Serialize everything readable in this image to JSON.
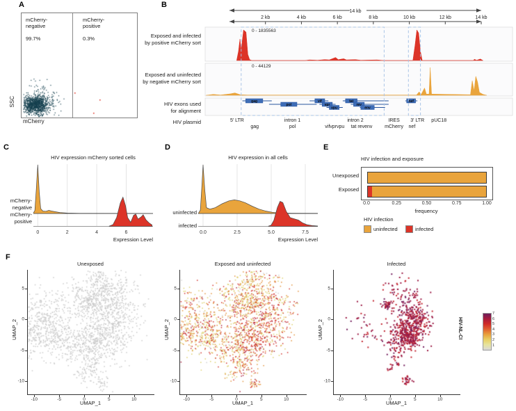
{
  "panels": {
    "a": "A",
    "b": "B",
    "c": "C",
    "d": "D",
    "e": "E",
    "f": "F"
  },
  "colors": {
    "red": "#dc3428",
    "orange": "#e9a43c",
    "dark_teal": "#16404f",
    "scatter_red": "#e0392b",
    "exon_blue": "#3e6db7",
    "exon_border": "#27549e",
    "dashed_blue": "#a9c4e6",
    "gray_points": "#c9c9c9",
    "baseline": "#999999",
    "axis": "#333333"
  },
  "chart_data": {
    "panel_a": {
      "type": "scatter",
      "xlabel": "mCherry",
      "ylabel": "SSC",
      "gates": [
        {
          "label": "mCherry-\nnegative",
          "percent": "99.7%"
        },
        {
          "label": "mCherry-\npositive",
          "percent": "0.3%"
        }
      ],
      "negative_cluster": {
        "center": [
          20,
          132
        ],
        "n_core": 700,
        "n_halo": 260
      },
      "positive_points": [
        [
          76,
          114
        ],
        [
          112,
          124
        ],
        [
          103,
          143
        ]
      ]
    },
    "panel_b": {
      "type": "coverage-tracks",
      "ruler": {
        "total_label": "14 kb",
        "tick_labels": [
          "2 kb",
          "4 kb",
          "6 kb",
          "8 kb",
          "10 kb",
          "12 kb",
          "14 kb"
        ],
        "tick_kb": [
          2,
          4,
          6,
          8,
          10,
          12,
          14
        ]
      },
      "tracks": [
        {
          "label": "Exposed and infected\nby positive mCherry sort",
          "range_label": "0 - 1835563",
          "color_key": "red",
          "profile": [
            [
              0.4,
              0
            ],
            [
              0.5,
              0.3
            ],
            [
              0.58,
              0.7
            ],
            [
              0.65,
              0.35
            ],
            [
              0.78,
              1.0
            ],
            [
              0.92,
              0.93
            ],
            [
              1.02,
              0.2
            ],
            [
              1.12,
              0.03
            ],
            [
              1.25,
              0
            ],
            [
              4.2,
              0
            ],
            [
              4.45,
              0.02
            ],
            [
              4.9,
              0.01
            ],
            [
              5.3,
              0.03
            ],
            [
              5.55,
              0.02
            ],
            [
              5.9,
              0.1
            ],
            [
              6.05,
              0.03
            ],
            [
              6.35,
              0.06
            ],
            [
              6.5,
              0.02
            ],
            [
              7.0,
              0.03
            ],
            [
              7.3,
              0.01
            ],
            [
              8.2,
              0.02
            ],
            [
              8.6,
              0
            ],
            [
              10.2,
              0
            ],
            [
              10.32,
              0.5
            ],
            [
              10.42,
              1.0
            ],
            [
              10.52,
              0.9
            ],
            [
              10.62,
              0.3
            ],
            [
              10.72,
              0
            ],
            [
              13.55,
              0
            ],
            [
              13.62,
              0.04
            ],
            [
              13.75,
              0.01
            ],
            [
              13.95,
              0.05
            ],
            [
              14.1,
              0
            ]
          ]
        },
        {
          "label": "Exposed and uninfected\nby negative mCherry sort",
          "range_label": "0 - 44129",
          "color_key": "orange",
          "profile": [
            [
              -1.3,
              0
            ],
            [
              -0.9,
              0.03
            ],
            [
              -0.5,
              0.01
            ],
            [
              0.05,
              0.05
            ],
            [
              0.3,
              0.08
            ],
            [
              0.6,
              0.02
            ],
            [
              1.0,
              0.01
            ],
            [
              10.4,
              0.01
            ],
            [
              10.55,
              0.12
            ],
            [
              10.65,
              0.02
            ],
            [
              10.85,
              0.25
            ],
            [
              10.95,
              0.04
            ],
            [
              11.1,
              0.04
            ],
            [
              11.16,
              0.95
            ],
            [
              11.24,
              0.04
            ],
            [
              13.4,
              0.02
            ],
            [
              13.5,
              0.5
            ],
            [
              13.6,
              0.15
            ],
            [
              13.7,
              0.65
            ],
            [
              13.8,
              0.45
            ],
            [
              13.9,
              0.1
            ],
            [
              14.1,
              0.03
            ],
            [
              14.3,
              0
            ]
          ]
        }
      ],
      "exons_track_label": "HIV exons used\nfor alignment",
      "exons": [
        {
          "name": "gag",
          "start": 0.9,
          "end": 1.85,
          "row": 0,
          "line": [
            0.72,
            2.35
          ]
        },
        {
          "name": "pol",
          "start": 2.85,
          "end": 3.75,
          "row": 1,
          "line": [
            2.2,
            4.85
          ]
        },
        {
          "name": "vif",
          "start": 4.75,
          "end": 5.3,
          "row": 0,
          "line": [
            4.45,
            5.5
          ]
        },
        {
          "name": "vpr",
          "start": 5.15,
          "end": 5.72,
          "row": 1,
          "line": [
            5.0,
            5.9
          ]
        },
        {
          "name": "vpu",
          "start": 5.55,
          "end": 6.1,
          "row": 2,
          "line": [
            5.4,
            6.3
          ]
        },
        {
          "name": "tat",
          "start": 6.45,
          "end": 7.1,
          "row": 0,
          "line": [
            6.3,
            8.85
          ]
        },
        {
          "name": "rev",
          "start": 6.9,
          "end": 7.5,
          "row": 1,
          "line": [
            6.75,
            8.85
          ]
        },
        {
          "name": "env",
          "start": 7.3,
          "end": 8.05,
          "row": 2,
          "line": [
            7.25,
            8.65
          ]
        },
        {
          "name": "nef",
          "start": 9.85,
          "end": 10.35,
          "row": 0,
          "line": [
            9.78,
            10.45
          ]
        }
      ],
      "highlight_regions_kb": [
        [
          0.65,
          8.6
        ],
        [
          9.95,
          10.62
        ]
      ],
      "plasmid_label": "HIV plasmid",
      "plasmid_annotations_row1": [
        {
          "text": "5' LTR",
          "kb": 0.42
        },
        {
          "text": "intron 1",
          "kb": 3.5
        },
        {
          "text": "intron 2",
          "kb": 7.0
        },
        {
          "text": "IRES",
          "kb": 9.15
        },
        {
          "text": "3' LTR",
          "kb": 10.45
        },
        {
          "text": "pUC18",
          "kb": 11.65
        }
      ],
      "plasmid_annotations_row2": [
        {
          "text": "gag",
          "kb": 1.4
        },
        {
          "text": "pol",
          "kb": 3.5
        },
        {
          "text": "vifvprvpu",
          "kb": 5.85
        },
        {
          "text": "tat revenv",
          "kb": 7.35
        },
        {
          "text": "mCherry",
          "kb": 9.15
        },
        {
          "text": "nef",
          "kb": 10.15
        }
      ]
    },
    "panel_c": {
      "type": "ridge",
      "title": "HIV expression mCherry sorted cells",
      "xlabel": "Expression Level",
      "xticks": [
        {
          "label": "0",
          "v": 0
        },
        {
          "label": "2",
          "v": 2
        },
        {
          "label": "4",
          "v": 4
        },
        {
          "label": "6",
          "v": 6
        }
      ],
      "rows": [
        {
          "label": "mCherry-\nnegative",
          "color_key": "orange",
          "max_h": 70,
          "profile": [
            [
              -0.32,
              0
            ],
            [
              -0.2,
              0.06
            ],
            [
              -0.1,
              0.5
            ],
            [
              0,
              1
            ],
            [
              0.1,
              0.45
            ],
            [
              0.2,
              0.1
            ],
            [
              0.35,
              0.05
            ],
            [
              0.55,
              0.045
            ],
            [
              0.75,
              0.065
            ],
            [
              0.95,
              0.05
            ],
            [
              1.2,
              0.035
            ],
            [
              1.5,
              0.02
            ],
            [
              2.0,
              0.008
            ],
            [
              2.8,
              0.004
            ],
            [
              7.8,
              0.002
            ]
          ]
        },
        {
          "label": "mCherry-\npositive",
          "color_key": "red",
          "max_h": 42,
          "profile": [
            [
              4.85,
              0.01
            ],
            [
              5.1,
              0.06
            ],
            [
              5.35,
              0.3
            ],
            [
              5.6,
              0.8
            ],
            [
              5.78,
              1.0
            ],
            [
              5.95,
              0.72
            ],
            [
              6.1,
              0.3
            ],
            [
              6.3,
              0.14
            ],
            [
              6.5,
              0.38
            ],
            [
              6.65,
              0.42
            ],
            [
              6.8,
              0.25
            ],
            [
              7.0,
              0.32
            ],
            [
              7.15,
              0.4
            ],
            [
              7.35,
              0.22
            ],
            [
              7.55,
              0.12
            ],
            [
              7.75,
              0.05
            ]
          ]
        }
      ]
    },
    "panel_d": {
      "type": "ridge",
      "title": "HIV expression in all cells",
      "xlabel": "Expression Level",
      "xticks": [
        {
          "label": "0.0",
          "v": 0
        },
        {
          "label": "2.5",
          "v": 2.5
        },
        {
          "label": "5.0",
          "v": 5
        },
        {
          "label": "7.5",
          "v": 7.5
        }
      ],
      "rows": [
        {
          "label": "uninfected",
          "color_key": "orange",
          "max_h": 70,
          "profile": [
            [
              -0.35,
              0
            ],
            [
              -0.2,
              0.07
            ],
            [
              -0.1,
              0.5
            ],
            [
              0,
              1
            ],
            [
              0.12,
              0.5
            ],
            [
              0.25,
              0.12
            ],
            [
              0.5,
              0.09
            ],
            [
              0.9,
              0.12
            ],
            [
              1.4,
              0.2
            ],
            [
              1.9,
              0.26
            ],
            [
              2.3,
              0.28
            ],
            [
              2.7,
              0.26
            ],
            [
              3.1,
              0.22
            ],
            [
              3.6,
              0.15
            ],
            [
              4.1,
              0.09
            ],
            [
              4.6,
              0.05
            ],
            [
              5.1,
              0.025
            ],
            [
              5.6,
              0.012
            ],
            [
              6.5,
              0.006
            ],
            [
              8.9,
              0.003
            ]
          ]
        },
        {
          "label": "infected",
          "color_key": "red",
          "max_h": 36,
          "profile": [
            [
              4.8,
              0.01
            ],
            [
              5.0,
              0.05
            ],
            [
              5.2,
              0.25
            ],
            [
              5.45,
              0.75
            ],
            [
              5.65,
              1.0
            ],
            [
              5.85,
              0.95
            ],
            [
              6.1,
              0.6
            ],
            [
              6.4,
              0.35
            ],
            [
              6.7,
              0.3
            ],
            [
              7.0,
              0.25
            ],
            [
              7.3,
              0.14
            ],
            [
              7.6,
              0.07
            ],
            [
              8.0,
              0.03
            ],
            [
              8.5,
              0.012
            ],
            [
              8.9,
              0
            ]
          ]
        }
      ]
    },
    "panel_e": {
      "type": "bar",
      "title": "HIV infection and exposure",
      "xlabel": "frequency",
      "categories": [
        "Unexposed",
        "Exposed"
      ],
      "xticks": [
        "0.0",
        "0.25",
        "0.50",
        "0.75",
        "1.00"
      ],
      "bars": [
        {
          "category": "Unexposed",
          "infected": 0.0,
          "uninfected": 0.985
        },
        {
          "category": "Exposed",
          "infected": 0.035,
          "uninfected": 0.95
        }
      ],
      "legend": {
        "title": "HIV infection",
        "items": [
          {
            "label": "uninfected",
            "color_key": "orange"
          },
          {
            "label": "infected",
            "color_key": "red"
          }
        ]
      }
    },
    "panel_f": {
      "type": "umap-scatter",
      "xlabel": "UMAP_1",
      "ylabel": "UMAP_2",
      "xticks": [
        -10,
        -5,
        0,
        5,
        10
      ],
      "yticks": [
        5,
        0,
        -5,
        -10
      ],
      "subplots": [
        {
          "title": "Unexposed",
          "mode": "gray"
        },
        {
          "title": "Exposed and uninfected",
          "mode": "mix"
        },
        {
          "title": "Infected",
          "mode": "infected"
        }
      ],
      "clusters": [
        [
          -8,
          -0.5,
          3.4,
          2.7,
          480
        ],
        [
          -4.6,
          -3.2,
          1.7,
          1.4,
          110
        ],
        [
          -10.6,
          -2.9,
          1.0,
          1.1,
          45
        ],
        [
          0.3,
          1.8,
          1.5,
          1.2,
          80
        ],
        [
          2.0,
          2.9,
          1.2,
          1.0,
          60
        ],
        [
          -1.5,
          4.4,
          0.8,
          0.6,
          25
        ],
        [
          4.3,
          4.3,
          3.0,
          2.2,
          330
        ],
        [
          3.2,
          6.9,
          1.1,
          1.3,
          55
        ],
        [
          6.1,
          -0.6,
          2.7,
          2.5,
          340
        ],
        [
          2.8,
          -3.3,
          2.1,
          1.7,
          240
        ],
        [
          0.0,
          -4.1,
          1.1,
          0.9,
          55
        ],
        [
          -2.5,
          -5.4,
          0.8,
          0.9,
          35
        ],
        [
          0.8,
          -6.4,
          0.9,
          1.1,
          45
        ],
        [
          2.2,
          -8.3,
          1.0,
          1.1,
          45
        ],
        [
          -0.9,
          -8.9,
          0.8,
          0.7,
          25
        ],
        [
          3.6,
          -10.3,
          0.8,
          0.5,
          28
        ],
        [
          12.1,
          2.4,
          0.3,
          0.3,
          4
        ]
      ],
      "infected_clusters": [
        [
          3.2,
          -2.8,
          1.6,
          1.2,
          240
        ],
        [
          5.0,
          -1.1,
          1.6,
          1.5,
          190
        ],
        [
          5.6,
          0.9,
          1.3,
          1.4,
          70
        ],
        [
          2.1,
          0.4,
          1.7,
          2.0,
          60
        ],
        [
          3.6,
          3.0,
          1.9,
          1.6,
          55
        ],
        [
          -0.6,
          2.3,
          0.5,
          0.4,
          35
        ],
        [
          -6.0,
          -0.8,
          2.2,
          1.8,
          22
        ],
        [
          1.5,
          -5.3,
          1.0,
          0.8,
          30
        ],
        [
          0.5,
          -7.6,
          0.6,
          0.5,
          12
        ],
        [
          3.3,
          -9.9,
          0.5,
          0.35,
          26
        ],
        [
          1.0,
          5.5,
          1.5,
          1.0,
          18
        ],
        [
          -3.5,
          -3.0,
          1.0,
          0.8,
          12
        ]
      ],
      "palettes": {
        "gray": [
          [
            "#c9c9c9",
            1
          ]
        ],
        "mix": [
          [
            "#ddd06a",
            0.4
          ],
          [
            "#e2923a",
            0.26
          ],
          [
            "#d1302a",
            0.23
          ],
          [
            "#a51f3c",
            0.04
          ],
          [
            "#cfcfcf",
            0.07
          ]
        ],
        "mix_red": [
          [
            "#ddd06a",
            0.18
          ],
          [
            "#e2923a",
            0.22
          ],
          [
            "#d1302a",
            0.45
          ],
          [
            "#a51f3c",
            0.1
          ],
          [
            "#cfcfcf",
            0.05
          ]
        ],
        "infected": [
          [
            "#9c1a44",
            0.55
          ],
          [
            "#c22430",
            0.33
          ],
          [
            "#731d5c",
            0.12
          ]
        ]
      },
      "colorbar": {
        "label": "HIV-NL-CI",
        "ticks": [
          "7",
          "6",
          "5",
          "4",
          "3",
          "2",
          "1"
        ],
        "gradient": [
          "#6e1e5a",
          "#a81c3c",
          "#d02b27",
          "#e06030",
          "#e89f3c",
          "#e8cf63",
          "#e7e49c",
          "#d9d9d9"
        ]
      }
    }
  }
}
